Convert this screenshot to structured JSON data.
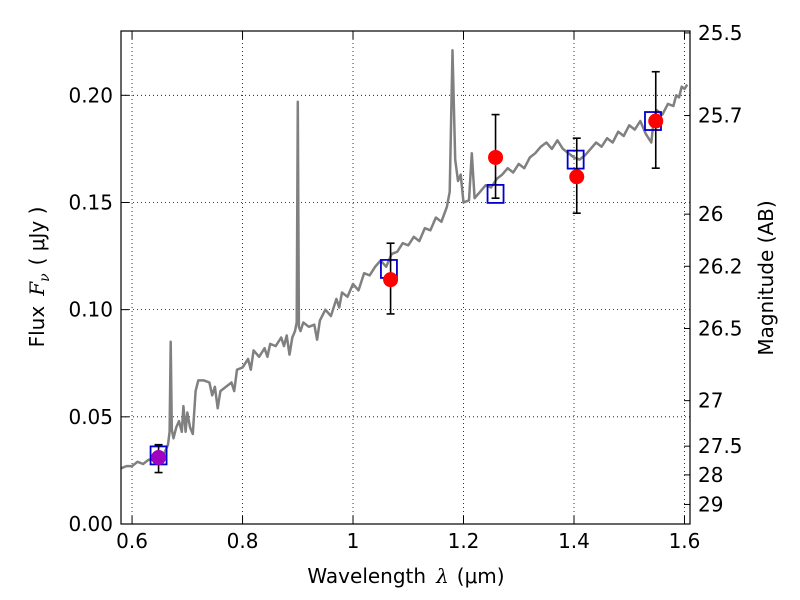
{
  "chart_data": {
    "type": "line",
    "xlabel_text": "Wavelength",
    "xlabel_symbol": "λ",
    "xlabel_unit": "(μm)",
    "ylabel_text": "Flux",
    "ylabel_symbol": "F",
    "ylabel_subscript": "ν",
    "ylabel_unit": "( μJy )",
    "y2label": "Magnitude (AB)",
    "xlim": [
      0.58,
      1.61
    ],
    "ylim": [
      0.0,
      0.23
    ],
    "xticks": [
      {
        "value": 0.6,
        "label": "0.6"
      },
      {
        "value": 0.8,
        "label": "0.8"
      },
      {
        "value": 1.0,
        "label": "1"
      },
      {
        "value": 1.2,
        "label": "1.2"
      },
      {
        "value": 1.4,
        "label": "1.4"
      },
      {
        "value": 1.6,
        "label": "1.6"
      }
    ],
    "yticks": [
      {
        "value": 0.0,
        "label": "0.00"
      },
      {
        "value": 0.05,
        "label": "0.05"
      },
      {
        "value": 0.1,
        "label": "0.10"
      },
      {
        "value": 0.15,
        "label": "0.15"
      },
      {
        "value": 0.2,
        "label": "0.20"
      }
    ],
    "y2ticks": [
      {
        "value": 25.5,
        "label": "25.5"
      },
      {
        "value": 25.7,
        "label": "25.7"
      },
      {
        "value": 26.0,
        "label": "26"
      },
      {
        "value": 26.2,
        "label": "26.2"
      },
      {
        "value": 26.5,
        "label": "26.5"
      },
      {
        "value": 27.0,
        "label": "27"
      },
      {
        "value": 27.5,
        "label": "27.5"
      },
      {
        "value": 28.0,
        "label": "28"
      },
      {
        "value": 29.0,
        "label": "29"
      }
    ],
    "mag_zero_point_uJy": 3631000000,
    "grid": true,
    "grid_style": "dotted",
    "series": [
      {
        "kind": "spectrum",
        "color": "#808080",
        "points": [
          [
            0.58,
            0.026
          ],
          [
            0.59,
            0.027
          ],
          [
            0.6,
            0.027
          ],
          [
            0.61,
            0.029
          ],
          [
            0.62,
            0.028
          ],
          [
            0.63,
            0.03
          ],
          [
            0.64,
            0.03
          ],
          [
            0.65,
            0.032
          ],
          [
            0.655,
            0.031
          ],
          [
            0.66,
            0.034
          ],
          [
            0.665,
            0.037
          ],
          [
            0.668,
            0.043
          ],
          [
            0.67,
            0.085
          ],
          [
            0.672,
            0.044
          ],
          [
            0.675,
            0.04
          ],
          [
            0.68,
            0.045
          ],
          [
            0.685,
            0.048
          ],
          [
            0.69,
            0.043
          ],
          [
            0.693,
            0.055
          ],
          [
            0.697,
            0.043
          ],
          [
            0.7,
            0.052
          ],
          [
            0.705,
            0.045
          ],
          [
            0.71,
            0.042
          ],
          [
            0.715,
            0.062
          ],
          [
            0.72,
            0.067
          ],
          [
            0.73,
            0.067
          ],
          [
            0.74,
            0.066
          ],
          [
            0.745,
            0.06
          ],
          [
            0.75,
            0.064
          ],
          [
            0.755,
            0.054
          ],
          [
            0.76,
            0.062
          ],
          [
            0.77,
            0.064
          ],
          [
            0.78,
            0.066
          ],
          [
            0.785,
            0.062
          ],
          [
            0.79,
            0.072
          ],
          [
            0.8,
            0.073
          ],
          [
            0.81,
            0.077
          ],
          [
            0.815,
            0.072
          ],
          [
            0.82,
            0.081
          ],
          [
            0.83,
            0.078
          ],
          [
            0.84,
            0.082
          ],
          [
            0.845,
            0.078
          ],
          [
            0.85,
            0.084
          ],
          [
            0.86,
            0.083
          ],
          [
            0.87,
            0.087
          ],
          [
            0.875,
            0.083
          ],
          [
            0.88,
            0.088
          ],
          [
            0.885,
            0.079
          ],
          [
            0.89,
            0.087
          ],
          [
            0.895,
            0.09
          ],
          [
            0.898,
            0.094
          ],
          [
            0.9,
            0.197
          ],
          [
            0.902,
            0.092
          ],
          [
            0.905,
            0.09
          ],
          [
            0.91,
            0.094
          ],
          [
            0.92,
            0.092
          ],
          [
            0.93,
            0.093
          ],
          [
            0.935,
            0.086
          ],
          [
            0.94,
            0.095
          ],
          [
            0.95,
            0.1
          ],
          [
            0.96,
            0.097
          ],
          [
            0.97,
            0.105
          ],
          [
            0.975,
            0.101
          ],
          [
            0.98,
            0.108
          ],
          [
            0.99,
            0.106
          ],
          [
            1.0,
            0.112
          ],
          [
            1.01,
            0.109
          ],
          [
            1.02,
            0.117
          ],
          [
            1.03,
            0.116
          ],
          [
            1.04,
            0.12
          ],
          [
            1.05,
            0.123
          ],
          [
            1.06,
            0.12
          ],
          [
            1.07,
            0.126
          ],
          [
            1.08,
            0.127
          ],
          [
            1.09,
            0.131
          ],
          [
            1.1,
            0.13
          ],
          [
            1.11,
            0.134
          ],
          [
            1.12,
            0.132
          ],
          [
            1.13,
            0.138
          ],
          [
            1.14,
            0.137
          ],
          [
            1.15,
            0.143
          ],
          [
            1.16,
            0.141
          ],
          [
            1.17,
            0.148
          ],
          [
            1.175,
            0.155
          ],
          [
            1.18,
            0.221
          ],
          [
            1.185,
            0.17
          ],
          [
            1.19,
            0.16
          ],
          [
            1.195,
            0.163
          ],
          [
            1.2,
            0.15
          ],
          [
            1.21,
            0.151
          ],
          [
            1.215,
            0.173
          ],
          [
            1.22,
            0.152
          ],
          [
            1.23,
            0.155
          ],
          [
            1.24,
            0.158
          ],
          [
            1.25,
            0.157
          ],
          [
            1.26,
            0.161
          ],
          [
            1.27,
            0.163
          ],
          [
            1.28,
            0.166
          ],
          [
            1.29,
            0.164
          ],
          [
            1.3,
            0.168
          ],
          [
            1.31,
            0.166
          ],
          [
            1.32,
            0.171
          ],
          [
            1.33,
            0.173
          ],
          [
            1.34,
            0.176
          ],
          [
            1.35,
            0.178
          ],
          [
            1.36,
            0.175
          ],
          [
            1.37,
            0.179
          ],
          [
            1.38,
            0.175
          ],
          [
            1.39,
            0.173
          ],
          [
            1.4,
            0.171
          ],
          [
            1.41,
            0.17
          ],
          [
            1.42,
            0.172
          ],
          [
            1.43,
            0.175
          ],
          [
            1.44,
            0.178
          ],
          [
            1.45,
            0.176
          ],
          [
            1.46,
            0.18
          ],
          [
            1.47,
            0.178
          ],
          [
            1.48,
            0.183
          ],
          [
            1.49,
            0.181
          ],
          [
            1.5,
            0.186
          ],
          [
            1.51,
            0.184
          ],
          [
            1.52,
            0.188
          ],
          [
            1.53,
            0.182
          ],
          [
            1.54,
            0.178
          ],
          [
            1.545,
            0.19
          ],
          [
            1.55,
            0.193
          ],
          [
            1.56,
            0.191
          ],
          [
            1.57,
            0.196
          ],
          [
            1.58,
            0.195
          ],
          [
            1.585,
            0.2
          ],
          [
            1.59,
            0.199
          ],
          [
            1.595,
            0.204
          ],
          [
            1.6,
            0.203
          ],
          [
            1.605,
            0.205
          ]
        ]
      },
      {
        "kind": "model-squares",
        "color": "#0000cc",
        "points": [
          [
            0.648,
            0.032
          ],
          [
            1.065,
            0.119
          ],
          [
            1.258,
            0.154
          ],
          [
            1.403,
            0.17
          ],
          [
            1.543,
            0.188
          ]
        ]
      },
      {
        "kind": "observed-circles",
        "color": "#ff0000",
        "first_point_color": "#a000c0",
        "points": [
          {
            "x": 0.648,
            "y": 0.031,
            "err_low": 0.024,
            "err_high": 0.037
          },
          {
            "x": 1.068,
            "y": 0.114,
            "err_low": 0.098,
            "err_high": 0.131
          },
          {
            "x": 1.258,
            "y": 0.171,
            "err_low": 0.152,
            "err_high": 0.191
          },
          {
            "x": 1.405,
            "y": 0.162,
            "err_low": 0.145,
            "err_high": 0.18
          },
          {
            "x": 1.548,
            "y": 0.188,
            "err_low": 0.166,
            "err_high": 0.211
          }
        ]
      }
    ]
  }
}
